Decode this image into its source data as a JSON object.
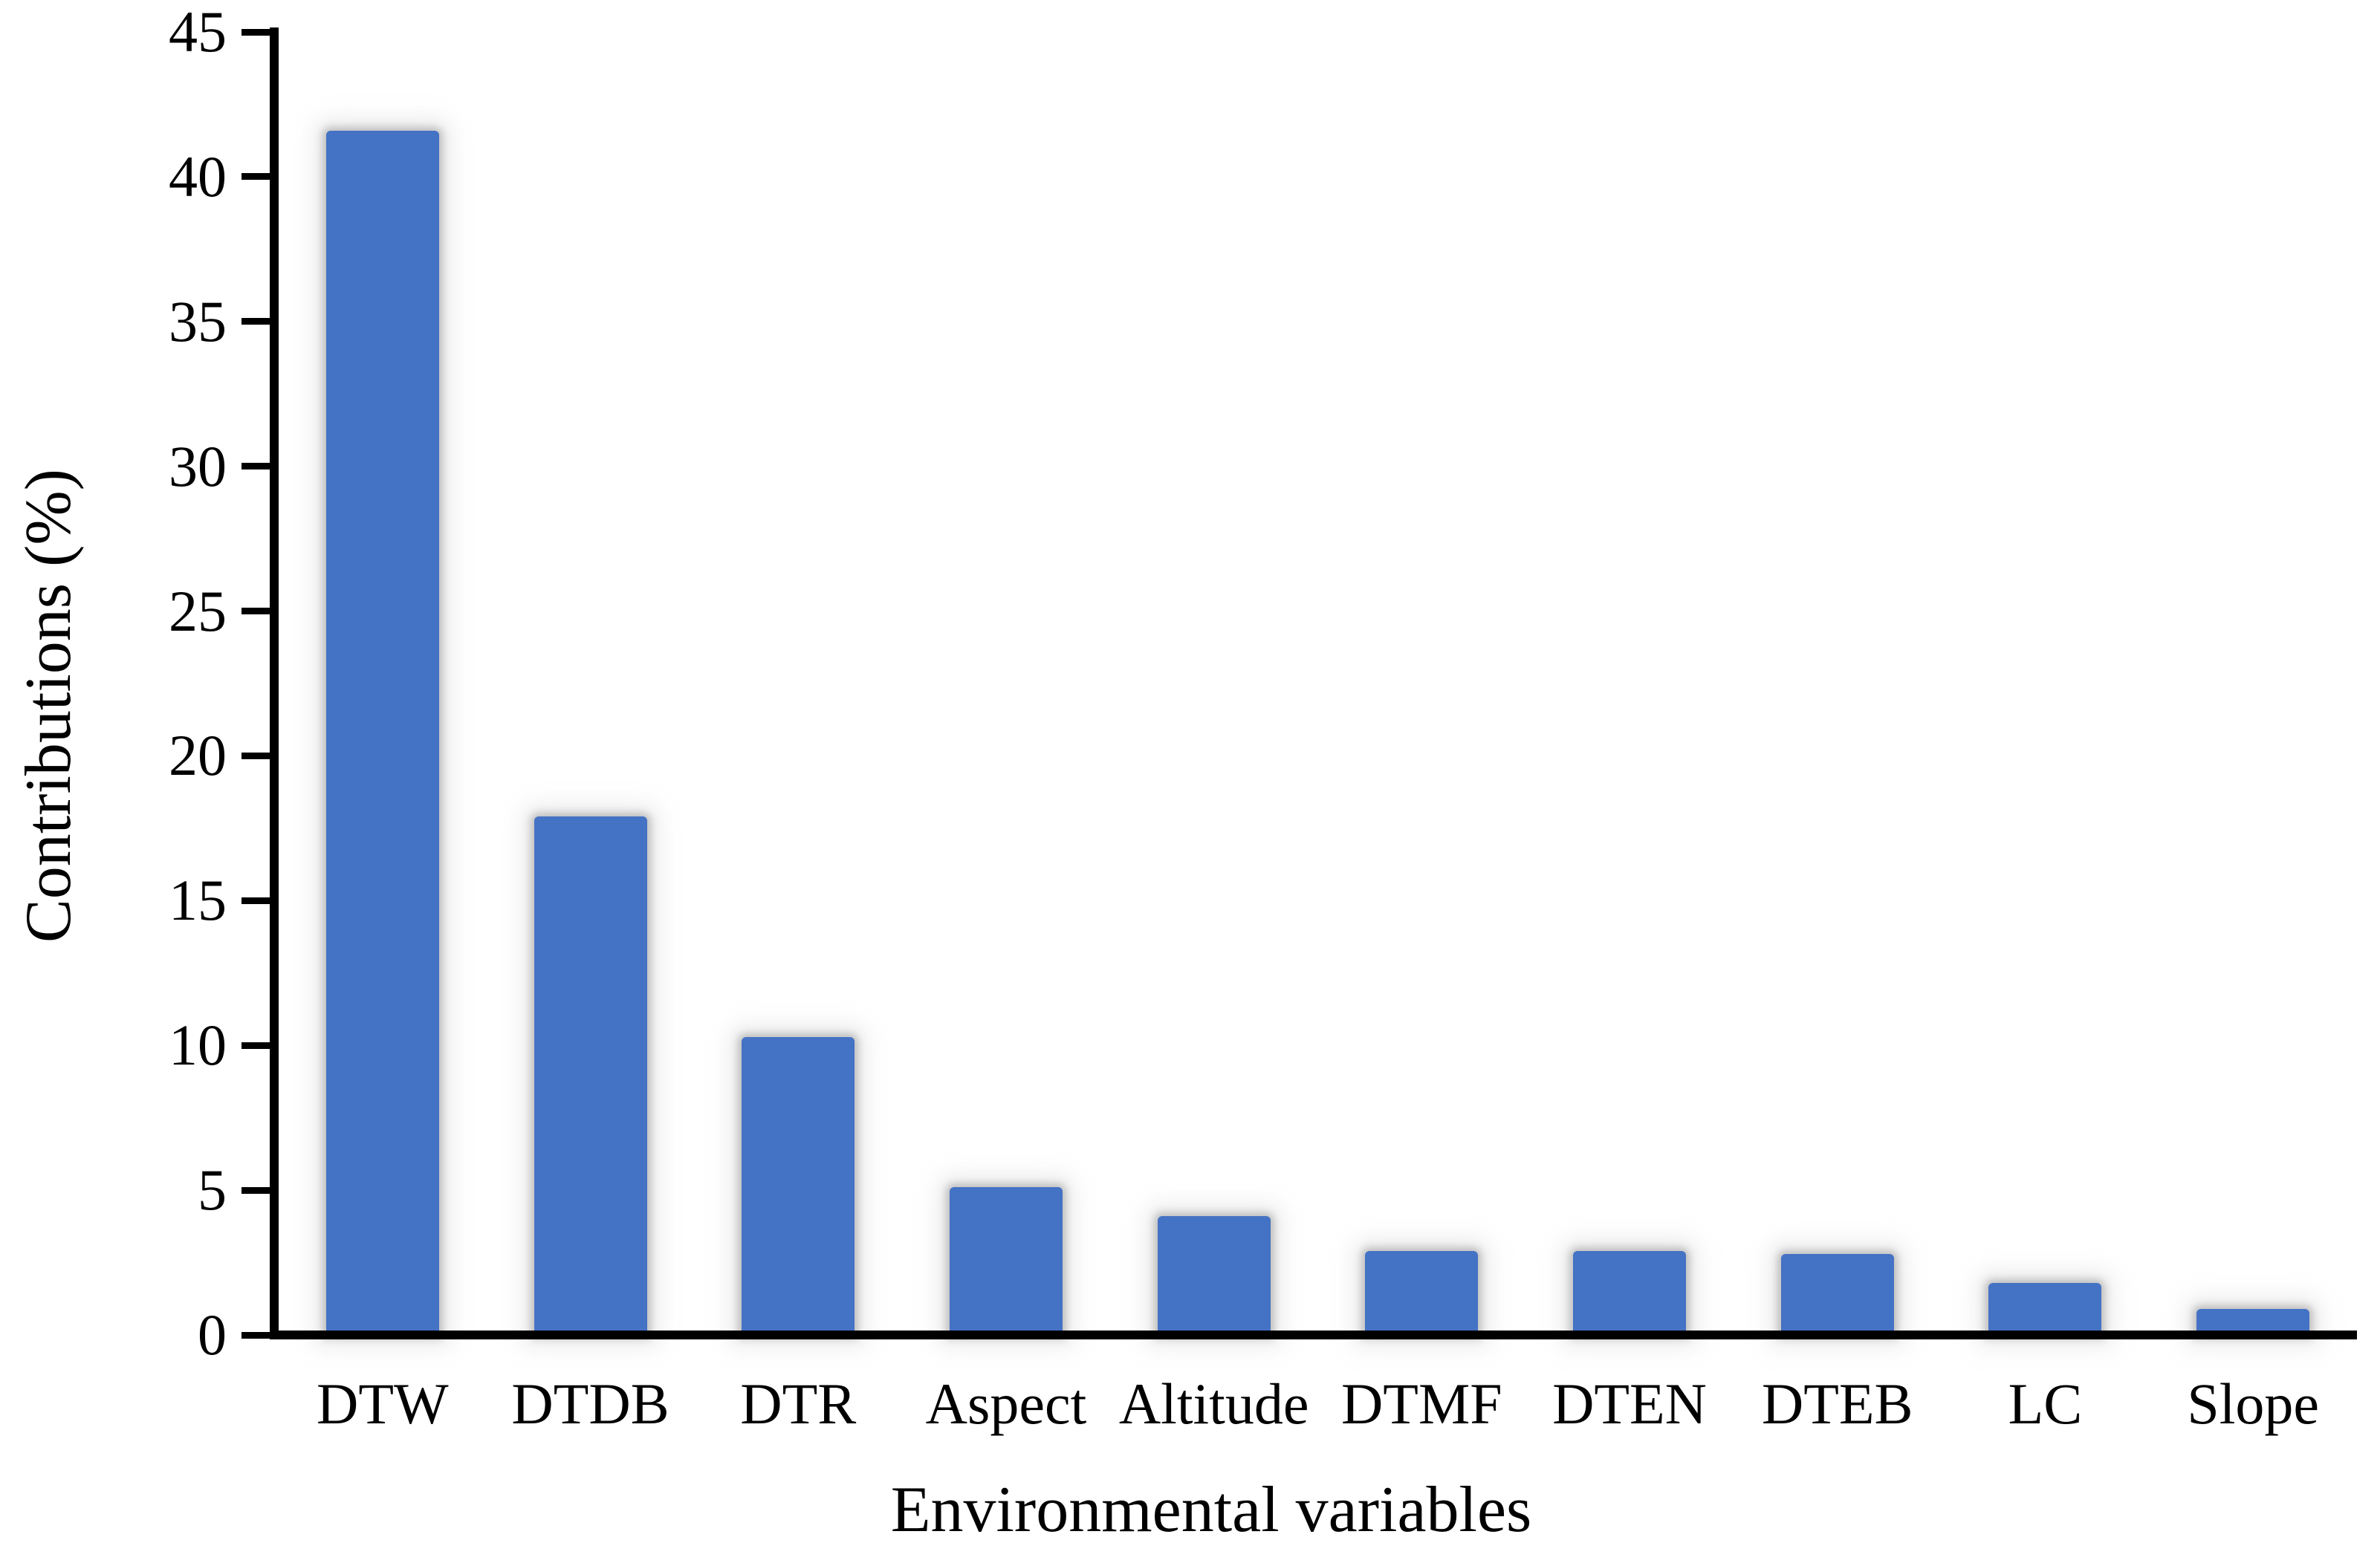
{
  "chart_data": {
    "type": "bar",
    "title": "",
    "categories": [
      "DTW",
      "DTDB",
      "DTR",
      "Aspect",
      "Altitude",
      "DTMF",
      "DTEN",
      "DTEB",
      "LC",
      "Slope"
    ],
    "values": [
      41.6,
      17.9,
      10.3,
      5.1,
      4.1,
      2.9,
      2.9,
      2.8,
      1.8,
      0.9
    ],
    "xlabel": "Environmental variables",
    "ylabel": "Contributions (%)",
    "ylim": [
      0,
      45
    ],
    "yticks": [
      0,
      5,
      10,
      15,
      20,
      25,
      30,
      35,
      40,
      45
    ],
    "grid": false,
    "legend": "none",
    "bar_color": "#4472C4",
    "axis_color": "#000000",
    "text_color": "#000000",
    "background_color": "#ffffff"
  }
}
